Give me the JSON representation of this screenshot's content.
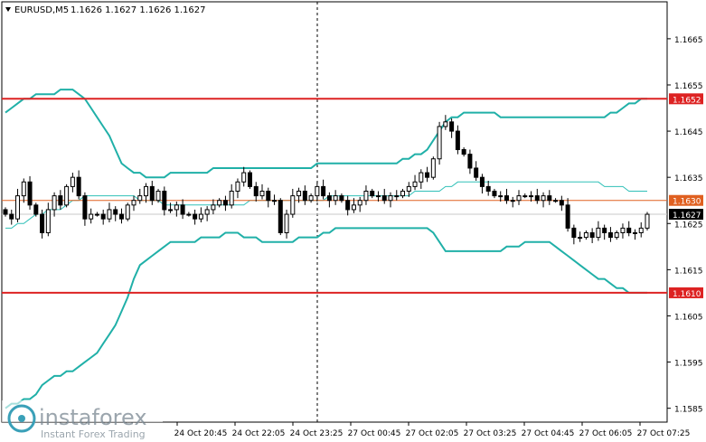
{
  "header": {
    "symbol": "EURUSD,M5",
    "ohlc": "1.1626 1.1627 1.1626 1.1627"
  },
  "watermark": {
    "brand": "instaforex",
    "tagline": "Instant Forex Trading"
  },
  "chart_data": {
    "type": "candlestick",
    "symbol": "EURUSD",
    "timeframe": "M5",
    "y_range": [
      1.1582,
      1.1673
    ],
    "y_ticks": [
      "1.1665",
      "1.1655",
      "1.1645",
      "1.1635",
      "1.1625",
      "1.1615",
      "1.1605",
      "1.1595",
      "1.1585"
    ],
    "x_ticks": [
      "24 Oct 20:45",
      "24 Oct 22:05",
      "24 Oct 23:25",
      "27 Oct 00:45",
      "27 Oct 02:05",
      "27 Oct 03:25",
      "27 Oct 04:45",
      "27 Oct 06:05",
      "27 Oct 07:25"
    ],
    "session_separator_label": "24 Oct 23:25",
    "levels": [
      {
        "price": 1.1652,
        "label": "1.1652",
        "color": "#dd2222"
      },
      {
        "price": 1.163,
        "label": "1.1630",
        "color": "#e06020"
      },
      {
        "price": 1.161,
        "label": "1.1610",
        "color": "#dd2222"
      }
    ],
    "current_price": {
      "price": 1.1627,
      "label": "1.1627"
    },
    "candle_color": "#000000",
    "band_color": "#20b0a8",
    "middle_band_color": "#30c0b8",
    "closes": [
      1.1627,
      1.1626,
      1.1631,
      1.1634,
      1.1629,
      1.1627,
      1.1623,
      1.1628,
      1.1631,
      1.1629,
      1.1633,
      1.1635,
      1.1631,
      1.1626,
      1.1627,
      1.1627,
      1.1626,
      1.1628,
      1.1627,
      1.1626,
      1.1629,
      1.163,
      1.1631,
      1.1633,
      1.163,
      1.1632,
      1.1628,
      1.1628,
      1.1629,
      1.1627,
      1.1627,
      1.1626,
      1.1627,
      1.1628,
      1.1629,
      1.163,
      1.1629,
      1.1632,
      1.1634,
      1.1636,
      1.1633,
      1.1631,
      1.1632,
      1.163,
      1.163,
      1.1623,
      1.1627,
      1.1631,
      1.1632,
      1.163,
      1.1631,
      1.1633,
      1.1631,
      1.163,
      1.1631,
      1.163,
      1.1628,
      1.1629,
      1.163,
      1.1632,
      1.1631,
      1.1631,
      1.163,
      1.1631,
      1.1631,
      1.1632,
      1.1633,
      1.1634,
      1.1636,
      1.1635,
      1.1639,
      1.1646,
      1.1647,
      1.1645,
      1.1641,
      1.164,
      1.1637,
      1.1635,
      1.1633,
      1.1632,
      1.1631,
      1.1631,
      1.163,
      1.163,
      1.1631,
      1.1631,
      1.1631,
      1.163,
      1.1631,
      1.163,
      1.163,
      1.1629,
      1.1624,
      1.1622,
      1.1622,
      1.1623,
      1.1622,
      1.1624,
      1.1623,
      1.1622,
      1.1623,
      1.1624,
      1.1623,
      1.1623,
      1.1624,
      1.1627
    ],
    "upper_band": [
      1.1649,
      1.165,
      1.1651,
      1.1652,
      1.1652,
      1.1653,
      1.1653,
      1.1653,
      1.1653,
      1.1654,
      1.1654,
      1.1654,
      1.1653,
      1.1652,
      1.165,
      1.1648,
      1.1646,
      1.1644,
      1.1641,
      1.1638,
      1.1637,
      1.1636,
      1.1636,
      1.1635,
      1.1635,
      1.1635,
      1.1635,
      1.1636,
      1.1636,
      1.1636,
      1.1636,
      1.1636,
      1.1636,
      1.1636,
      1.1637,
      1.1637,
      1.1637,
      1.1637,
      1.1637,
      1.1637,
      1.1637,
      1.1637,
      1.1637,
      1.1637,
      1.1637,
      1.1637,
      1.1637,
      1.1637,
      1.1637,
      1.1637,
      1.1637,
      1.1638,
      1.1638,
      1.1638,
      1.1638,
      1.1638,
      1.1638,
      1.1638,
      1.1638,
      1.1638,
      1.1638,
      1.1638,
      1.1638,
      1.1638,
      1.1638,
      1.1639,
      1.1639,
      1.164,
      1.164,
      1.1641,
      1.1643,
      1.1645,
      1.1647,
      1.1648,
      1.1648,
      1.1649,
      1.1649,
      1.1649,
      1.1649,
      1.1649,
      1.1649,
      1.1648,
      1.1648,
      1.1648,
      1.1648,
      1.1648,
      1.1648,
      1.1648,
      1.1648,
      1.1648,
      1.1648,
      1.1648,
      1.1648,
      1.1648,
      1.1648,
      1.1648,
      1.1648,
      1.1648,
      1.1648,
      1.1649,
      1.1649,
      1.165,
      1.1651,
      1.1651,
      1.1652,
      1.1652
    ],
    "middle_band": [
      1.1624,
      1.1624,
      1.1625,
      1.1625,
      1.1626,
      1.1627,
      1.1627,
      1.1628,
      1.1628,
      1.1628,
      1.1629,
      1.163,
      1.163,
      1.1631,
      1.1631,
      1.1631,
      1.1631,
      1.1631,
      1.1631,
      1.1631,
      1.1631,
      1.1631,
      1.163,
      1.163,
      1.163,
      1.163,
      1.1629,
      1.1629,
      1.1629,
      1.1629,
      1.1629,
      1.1629,
      1.1629,
      1.1629,
      1.1629,
      1.1629,
      1.1629,
      1.1629,
      1.1629,
      1.1629,
      1.163,
      1.163,
      1.163,
      1.163,
      1.163,
      1.163,
      1.163,
      1.163,
      1.163,
      1.163,
      1.163,
      1.163,
      1.163,
      1.1631,
      1.1631,
      1.1631,
      1.1631,
      1.1631,
      1.1631,
      1.1631,
      1.1631,
      1.1631,
      1.1631,
      1.1631,
      1.1631,
      1.1631,
      1.1631,
      1.1632,
      1.1632,
      1.1632,
      1.1632,
      1.1632,
      1.1633,
      1.1633,
      1.1634,
      1.1634,
      1.1634,
      1.1634,
      1.1634,
      1.1634,
      1.1634,
      1.1634,
      1.1634,
      1.1634,
      1.1634,
      1.1634,
      1.1634,
      1.1634,
      1.1634,
      1.1634,
      1.1634,
      1.1634,
      1.1634,
      1.1634,
      1.1634,
      1.1634,
      1.1634,
      1.1634,
      1.1633,
      1.1633,
      1.1633,
      1.1633,
      1.1632,
      1.1632,
      1.1632,
      1.1632
    ],
    "lower_band": [
      1.1585,
      1.1586,
      1.1586,
      1.1587,
      1.1587,
      1.1588,
      1.159,
      1.1591,
      1.1592,
      1.1592,
      1.1593,
      1.1593,
      1.1594,
      1.1595,
      1.1596,
      1.1597,
      1.1599,
      1.1601,
      1.1603,
      1.1606,
      1.1609,
      1.1613,
      1.1616,
      1.1617,
      1.1618,
      1.1619,
      1.162,
      1.1621,
      1.1621,
      1.1621,
      1.1621,
      1.1621,
      1.1622,
      1.1622,
      1.1622,
      1.1622,
      1.1623,
      1.1623,
      1.1623,
      1.1622,
      1.1622,
      1.1622,
      1.1621,
      1.1621,
      1.1621,
      1.1621,
      1.1621,
      1.1621,
      1.1622,
      1.1622,
      1.1622,
      1.1622,
      1.1623,
      1.1623,
      1.1624,
      1.1624,
      1.1624,
      1.1624,
      1.1624,
      1.1624,
      1.1624,
      1.1624,
      1.1624,
      1.1624,
      1.1624,
      1.1624,
      1.1624,
      1.1624,
      1.1624,
      1.1624,
      1.1623,
      1.1621,
      1.1619,
      1.1619,
      1.1619,
      1.1619,
      1.1619,
      1.1619,
      1.1619,
      1.1619,
      1.1619,
      1.1619,
      1.162,
      1.162,
      1.162,
      1.1621,
      1.1621,
      1.1621,
      1.1621,
      1.1621,
      1.162,
      1.1619,
      1.1618,
      1.1617,
      1.1616,
      1.1615,
      1.1614,
      1.1613,
      1.1613,
      1.1612,
      1.1611,
      1.1611,
      1.161,
      1.161,
      1.161,
      1.161
    ]
  }
}
